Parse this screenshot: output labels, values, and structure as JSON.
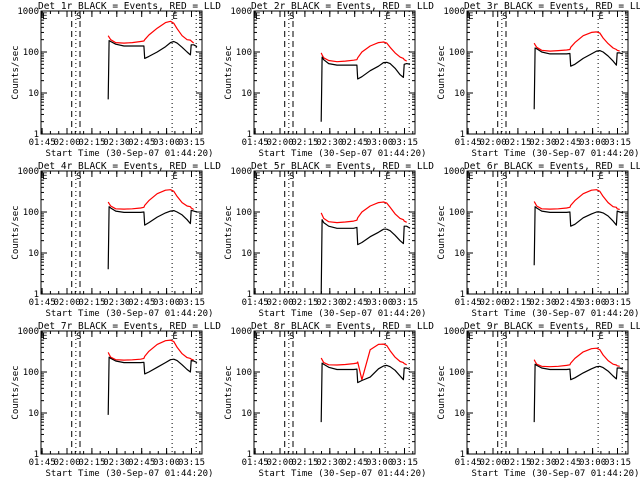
{
  "chart_data": {
    "type": "line",
    "layout": "3x3 grid of panels",
    "shared": {
      "xlabel": "Start Time (30-Sep-07 01:44:20)",
      "ylabel": "Counts/sec",
      "yscale": "log",
      "ylim": [
        1,
        1000
      ],
      "ytick_labels": [
        "1",
        "10",
        "100",
        "1000"
      ],
      "xlim_minutes_after_0144": [
        0,
        97
      ],
      "xtick_labels": [
        "01:45",
        "02:00",
        "02:15",
        "02:30",
        "02:45",
        "03:00",
        "03:15"
      ],
      "xtick_minutes": [
        0.67,
        15.67,
        30.67,
        45.67,
        60.67,
        75.67,
        90.67
      ],
      "series_colors": {
        "Events": "#000000",
        "LLD": "#ff0000"
      },
      "markers": [
        {
          "label": "E",
          "minute": 0.5,
          "style": "none"
        },
        {
          "label": "S",
          "minute": 21,
          "style": "dashed-bracket",
          "dashed_minutes": [
            18.5,
            23.5
          ],
          "dotted_minute": 21
        },
        {
          "label": "E",
          "minute": 79,
          "style": "dotted"
        },
        {
          "label": "",
          "minute": 93.5,
          "style": "dotted"
        }
      ],
      "time_minutes": [
        40.5,
        41,
        42,
        45,
        50,
        55,
        60,
        62,
        62.5,
        65,
        70,
        75,
        78,
        80,
        82,
        85,
        88,
        90,
        90.5,
        92,
        94
      ]
    },
    "panels": [
      {
        "title": "Det 1r BLACK = Events, RED = LLD",
        "events": [
          7,
          190,
          180,
          155,
          140,
          140,
          140,
          140,
          70,
          78,
          100,
          135,
          170,
          180,
          165,
          130,
          100,
          85,
          150,
          150,
          135
        ],
        "lld": [
          260,
          250,
          230,
          200,
          170,
          165,
          170,
          180,
          185,
          200,
          260,
          380,
          520,
          560,
          500,
          370,
          250,
          200,
          195,
          185,
          165
        ]
      },
      {
        "title": "Det 2r BLACK = Events, RED = LLD",
        "events": [
          2,
          75,
          65,
          52,
          48,
          48,
          48,
          48,
          22,
          25,
          35,
          45,
          55,
          56,
          52,
          40,
          28,
          24,
          50,
          52,
          50
        ],
        "lld": [
          100,
          95,
          85,
          72,
          62,
          58,
          60,
          63,
          65,
          72,
          100,
          140,
          170,
          175,
          165,
          130,
          95,
          75,
          70,
          65,
          60
        ]
      },
      {
        "title": "Det 3r BLACK = Events, RED = LLD",
        "events": [
          4,
          125,
          120,
          100,
          90,
          90,
          90,
          92,
          45,
          50,
          70,
          90,
          105,
          108,
          100,
          80,
          60,
          48,
          95,
          95,
          90
        ],
        "lld": [
          170,
          165,
          150,
          130,
          110,
          105,
          108,
          112,
          115,
          130,
          170,
          250,
          300,
          310,
          290,
          220,
          160,
          125,
          115,
          110,
          105
        ]
      },
      {
        "title": "Det 4r BLACK = Events, RED = LLD",
        "events": [
          4,
          135,
          125,
          105,
          98,
          98,
          98,
          100,
          48,
          55,
          75,
          95,
          105,
          108,
          100,
          85,
          65,
          52,
          110,
          105,
          100
        ],
        "lld": [
          180,
          175,
          160,
          140,
          120,
          118,
          120,
          125,
          130,
          145,
          190,
          280,
          340,
          350,
          320,
          240,
          170,
          140,
          135,
          125,
          115
        ]
      },
      {
        "title": "Det 5r BLACK = Events, RED = LLD",
        "events": [
          1,
          65,
          55,
          45,
          40,
          40,
          40,
          42,
          16,
          18,
          25,
          32,
          38,
          38,
          35,
          27,
          20,
          17,
          45,
          45,
          40
        ],
        "lld": [
          100,
          95,
          85,
          70,
          58,
          55,
          57,
          60,
          63,
          72,
          100,
          140,
          170,
          175,
          165,
          130,
          90,
          70,
          65,
          60,
          56
        ]
      },
      {
        "title": "Det 6r BLACK = Events, RED = LLD",
        "events": [
          5,
          135,
          125,
          105,
          98,
          98,
          98,
          100,
          45,
          50,
          72,
          90,
          100,
          100,
          95,
          80,
          60,
          48,
          105,
          100,
          95
        ],
        "lld": [
          190,
          180,
          165,
          140,
          120,
          118,
          120,
          125,
          130,
          145,
          190,
          280,
          340,
          350,
          320,
          240,
          170,
          135,
          130,
          120,
          115
        ]
      },
      {
        "title": "Det 7r BLACK = Events, RED = LLD",
        "events": [
          9,
          230,
          215,
          185,
          170,
          170,
          170,
          172,
          90,
          100,
          130,
          170,
          200,
          205,
          190,
          150,
          115,
          100,
          190,
          185,
          170
        ],
        "lld": [
          320,
          300,
          270,
          230,
          200,
          195,
          198,
          205,
          215,
          240,
          320,
          470,
          580,
          600,
          550,
          400,
          280,
          225,
          215,
          205,
          195
        ]
      },
      {
        "title": "Det 8r BLACK = Events, RED = LLD",
        "events": [
          6,
          165,
          155,
          130,
          115,
          115,
          115,
          118,
          55,
          62,
          75,
          120,
          140,
          145,
          135,
          110,
          80,
          65,
          125,
          125,
          115
        ],
        "lld": [
          230,
          220,
          200,
          170,
          150,
          148,
          152,
          160,
          165,
          175,
          65,
          350,
          470,
          480,
          440,
          330,
          230,
          180,
          170,
          160,
          150
        ]
      },
      {
        "title": "Det 9r BLACK = Events, RED = LLD",
        "events": [
          6,
          155,
          145,
          125,
          115,
          115,
          115,
          118,
          65,
          72,
          95,
          120,
          135,
          138,
          128,
          105,
          80,
          68,
          125,
          125,
          118
        ],
        "lld": [
          210,
          200,
          180,
          155,
          138,
          135,
          138,
          145,
          150,
          165,
          215,
          310,
          370,
          380,
          350,
          260,
          190,
          155,
          148,
          142,
          138
        ]
      }
    ]
  }
}
